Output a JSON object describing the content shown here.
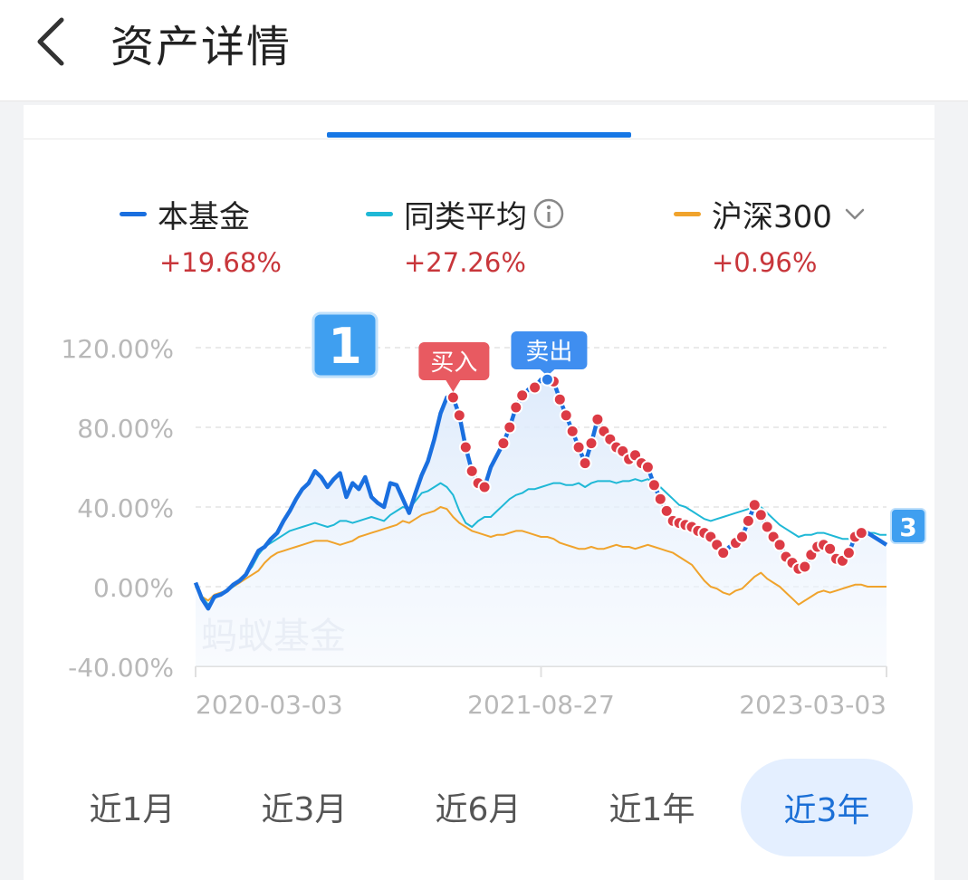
{
  "header": {
    "title": "资产详情"
  },
  "legend": [
    {
      "label": "本基金",
      "value": "+19.68%",
      "color": "#1a6fdf"
    },
    {
      "label": "同类平均",
      "value": "+27.26%",
      "color": "#1fb8d6"
    },
    {
      "label": "沪深300",
      "value": "+0.96%",
      "color": "#f0a32c"
    }
  ],
  "periods": [
    "近1月",
    "近3月",
    "近6月",
    "近1年",
    "近3年"
  ],
  "active_period": "近3年",
  "markers": {
    "buy": "买入",
    "sell": "卖出",
    "badge1": "1",
    "badge3": "3"
  },
  "watermark": "蚂蚁基金",
  "chart_data": {
    "type": "line",
    "ylim": [
      -40,
      120
    ],
    "yticks": [
      "120.00%",
      "80.00%",
      "40.00%",
      "0.00%",
      "-40.00%"
    ],
    "xticks": [
      "2020-03-03",
      "2021-08-27",
      "2023-03-03"
    ],
    "series": [
      {
        "name": "本基金",
        "color": "#1a6fdf",
        "values": [
          2,
          -6,
          -11,
          -5,
          -4,
          -2,
          1,
          3,
          6,
          12,
          18,
          20,
          24,
          27,
          33,
          38,
          44,
          49,
          52,
          58,
          55,
          50,
          54,
          57,
          45,
          52,
          49,
          55,
          45,
          42,
          40,
          52,
          51,
          44,
          37,
          47,
          56,
          63,
          74,
          87,
          95,
          95,
          86,
          70,
          58,
          52,
          50,
          60,
          66,
          72,
          80,
          90,
          96,
          99,
          100,
          104,
          104,
          103,
          94,
          86,
          78,
          70,
          62,
          72,
          84,
          78,
          74,
          70,
          68,
          64,
          66,
          62,
          60,
          51,
          44,
          38,
          33,
          32,
          31,
          30,
          28,
          27,
          25,
          21,
          17,
          20,
          22,
          25,
          33,
          41,
          36,
          30,
          25,
          21,
          15,
          12,
          9,
          10,
          16,
          20,
          21,
          19,
          14,
          13,
          17,
          25,
          27,
          27,
          25,
          23,
          21
        ]
      },
      {
        "name": "同类平均",
        "color": "#1fb8d6",
        "values": [
          0,
          -5,
          -9,
          -6,
          -4,
          -2,
          0,
          3,
          6,
          10,
          16,
          20,
          22,
          24,
          26,
          28,
          29,
          30,
          31,
          32,
          31,
          30,
          31,
          33,
          33,
          32,
          33,
          34,
          35,
          34,
          33,
          36,
          38,
          40,
          39,
          43,
          47,
          48,
          50,
          52,
          50,
          46,
          38,
          32,
          30,
          33,
          35,
          35,
          38,
          41,
          44,
          46,
          47,
          49,
          49,
          50,
          51,
          52,
          52,
          51,
          51,
          52,
          50,
          52,
          53,
          53,
          53,
          52,
          53,
          53,
          54,
          53,
          54,
          52,
          50,
          47,
          44,
          41,
          40,
          38,
          36,
          34,
          33,
          34,
          35,
          36,
          37,
          38,
          39,
          41,
          40,
          37,
          34,
          31,
          29,
          27,
          25,
          26,
          26,
          27,
          27,
          26,
          25,
          24,
          24,
          25,
          26,
          27,
          27,
          26,
          26
        ]
      },
      {
        "name": "沪深300",
        "color": "#f0a32c",
        "values": [
          0,
          -5,
          -7,
          -4,
          -3,
          -2,
          0,
          2,
          4,
          6,
          8,
          12,
          15,
          17,
          18,
          19,
          20,
          21,
          22,
          23,
          23,
          23,
          22,
          21,
          22,
          23,
          25,
          26,
          27,
          28,
          29,
          30,
          31,
          33,
          32,
          34,
          36,
          37,
          38,
          40,
          39,
          35,
          32,
          30,
          28,
          27,
          26,
          25,
          26,
          26,
          27,
          28,
          28,
          27,
          26,
          25,
          25,
          24,
          22,
          21,
          20,
          19,
          19,
          20,
          19,
          19,
          20,
          21,
          20,
          20,
          19,
          20,
          21,
          20,
          19,
          18,
          17,
          15,
          13,
          11,
          7,
          3,
          0,
          -1,
          -3,
          -4,
          -2,
          -1,
          2,
          5,
          7,
          4,
          2,
          0,
          -3,
          -6,
          -9,
          -7,
          -5,
          -3,
          -2,
          -3,
          -2,
          -1,
          0,
          1,
          1,
          0,
          0,
          0,
          0
        ]
      }
    ],
    "trade_dot_indices": [
      41,
      42,
      43,
      44,
      45,
      46,
      49,
      50,
      51,
      52,
      54,
      56,
      57,
      58,
      59,
      60,
      61,
      62,
      63,
      64,
      65,
      66,
      67,
      68,
      69,
      70,
      71,
      72,
      73,
      74,
      75,
      76,
      77,
      78,
      79,
      80,
      81,
      82,
      83,
      84,
      86,
      87,
      88,
      89,
      90,
      91,
      92,
      93,
      94,
      95,
      96,
      97,
      98,
      99,
      100,
      101,
      102,
      103,
      104,
      105,
      106
    ]
  }
}
